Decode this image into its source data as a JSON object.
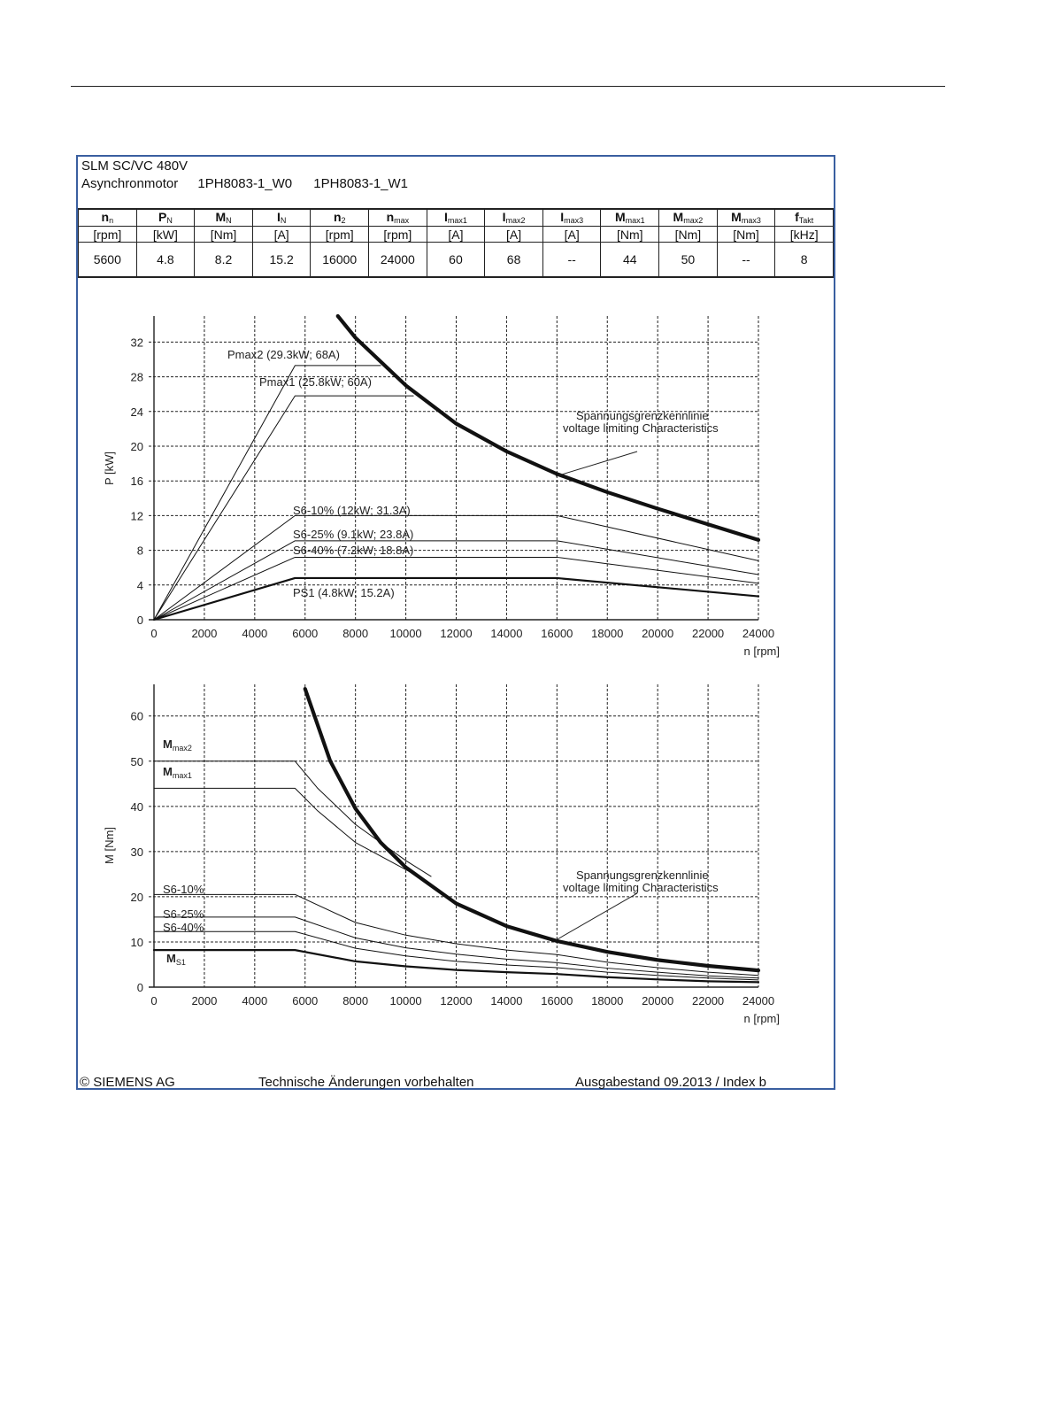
{
  "header": {
    "line1": "SLM SC/VC 480V",
    "motor_type": "Asynchronmotor",
    "model_w0": "1PH8083-1_W0",
    "model_w1": "1PH8083-1_W1"
  },
  "spec_table": {
    "columns": [
      {
        "sym": "n",
        "sub": "n",
        "unit": "[rpm]",
        "value": "5600"
      },
      {
        "sym": "P",
        "sub": "N",
        "unit": "[kW]",
        "value": "4.8"
      },
      {
        "sym": "M",
        "sub": "N",
        "unit": "[Nm]",
        "value": "8.2"
      },
      {
        "sym": "I",
        "sub": "N",
        "unit": "[A]",
        "value": "15.2"
      },
      {
        "sym": "n",
        "sub": "2",
        "unit": "[rpm]",
        "value": "16000"
      },
      {
        "sym": "n",
        "sub": "max",
        "unit": "[rpm]",
        "value": "24000"
      },
      {
        "sym": "I",
        "sub": "max1",
        "unit": "[A]",
        "value": "60"
      },
      {
        "sym": "I",
        "sub": "max2",
        "unit": "[A]",
        "value": "68"
      },
      {
        "sym": "I",
        "sub": "max3",
        "unit": "[A]",
        "value": "--"
      },
      {
        "sym": "M",
        "sub": "max1",
        "unit": "[Nm]",
        "value": "44"
      },
      {
        "sym": "M",
        "sub": "max2",
        "unit": "[Nm]",
        "value": "50"
      },
      {
        "sym": "M",
        "sub": "max3",
        "unit": "[Nm]",
        "value": "--"
      },
      {
        "sym": "f",
        "sub": "Takt",
        "unit": "[kHz]",
        "value": "8"
      }
    ]
  },
  "chart_data": [
    {
      "type": "line",
      "title": "",
      "xlabel": "n [rpm]",
      "ylabel": "P [kW]",
      "xlim": [
        0,
        24000
      ],
      "ylim": [
        0,
        35
      ],
      "xticks": [
        0,
        2000,
        4000,
        6000,
        8000,
        10000,
        12000,
        14000,
        16000,
        18000,
        20000,
        22000,
        24000
      ],
      "yticks": [
        0,
        4,
        8,
        12,
        16,
        20,
        24,
        28,
        32
      ],
      "grid": true,
      "series": [
        {
          "name": "Pmax2 (29.3kW; 68A)",
          "weight": "thin",
          "x": [
            0,
            5600,
            9000
          ],
          "y": [
            0,
            29.3,
            29.3
          ]
        },
        {
          "name": "Pmax1 (25.8kW; 60A)",
          "weight": "thin",
          "x": [
            0,
            5600,
            10300
          ],
          "y": [
            0,
            25.8,
            25.8
          ]
        },
        {
          "name": "S6-10% (12kW; 31.3A)",
          "weight": "thin",
          "x": [
            0,
            5600,
            16000,
            24000
          ],
          "y": [
            0,
            12,
            12,
            6.8
          ]
        },
        {
          "name": "S6-25% (9.1kW; 23.8A)",
          "weight": "thin",
          "x": [
            0,
            5600,
            16000,
            24000
          ],
          "y": [
            0,
            9.1,
            9.1,
            5.2
          ]
        },
        {
          "name": "S6-40% (7.2kW; 18.8A)",
          "weight": "thin",
          "x": [
            0,
            5600,
            16000,
            24000
          ],
          "y": [
            0,
            7.2,
            7.2,
            4.2
          ]
        },
        {
          "name": "PS1 (4.8kW; 15.2A)",
          "weight": "medium",
          "x": [
            0,
            5600,
            16000,
            24000
          ],
          "y": [
            0,
            4.8,
            4.8,
            2.7
          ]
        },
        {
          "name": "Spannungsgrenzkennlinie voltage limiting Characteristics",
          "weight": "bold",
          "x": [
            7300,
            8000,
            10000,
            12000,
            14000,
            16000,
            18000,
            20000,
            22000,
            24000
          ],
          "y": [
            35,
            32.5,
            27.0,
            22.6,
            19.4,
            16.8,
            14.7,
            12.8,
            11.0,
            9.2
          ]
        }
      ],
      "annotations": [
        {
          "text": "Pmax2 (29.3kW; 68A)"
        },
        {
          "text": "Pmax1 (25.8kW; 60A)"
        },
        {
          "text": "S6-10% (12kW; 31.3A)"
        },
        {
          "text": "S6-25% (9.1kW; 23.8A)"
        },
        {
          "text": "S6-40% (7.2kW; 18.8A)"
        },
        {
          "text": "PS1 (4.8kW; 15.2A)"
        },
        {
          "text": "Spannungsgrenzkennlinie"
        },
        {
          "text": "voltage limiting  Characteristics"
        }
      ]
    },
    {
      "type": "line",
      "title": "",
      "xlabel": "n [rpm]",
      "ylabel": "M [Nm]",
      "xlim": [
        0,
        24000
      ],
      "ylim": [
        0,
        67
      ],
      "xticks": [
        0,
        2000,
        4000,
        6000,
        8000,
        10000,
        12000,
        14000,
        16000,
        18000,
        20000,
        22000,
        24000
      ],
      "yticks": [
        0,
        10,
        20,
        30,
        40,
        50,
        60
      ],
      "grid": true,
      "series": [
        {
          "name": "Mmax2",
          "weight": "thin",
          "x": [
            0,
            5600,
            6500,
            8000,
            10000,
            11000
          ],
          "y": [
            50,
            50,
            44,
            36,
            28,
            24.5
          ]
        },
        {
          "name": "Mmax1",
          "weight": "thin",
          "x": [
            0,
            5600,
            6500,
            8000,
            10000,
            10500
          ],
          "y": [
            44,
            44,
            39,
            32,
            26,
            24.5
          ]
        },
        {
          "name": "S6-10%",
          "weight": "thin",
          "x": [
            0,
            5600,
            8000,
            10000,
            12000,
            14000,
            16000,
            18000,
            20000,
            22000,
            24000
          ],
          "y": [
            20.5,
            20.5,
            14.3,
            11.5,
            9.6,
            8.2,
            7.2,
            5.5,
            4.3,
            3.3,
            2.6
          ]
        },
        {
          "name": "S6-25%",
          "weight": "thin",
          "x": [
            0,
            5600,
            8000,
            10000,
            12000,
            14000,
            16000,
            18000,
            20000,
            22000,
            24000
          ],
          "y": [
            15.5,
            15.5,
            10.9,
            8.7,
            7.3,
            6.2,
            5.4,
            4.2,
            3.3,
            2.5,
            2.0
          ]
        },
        {
          "name": "S6-40%",
          "weight": "thin",
          "x": [
            0,
            5600,
            8000,
            10000,
            12000,
            14000,
            16000,
            18000,
            20000,
            22000,
            24000
          ],
          "y": [
            12.3,
            12.3,
            8.6,
            6.9,
            5.7,
            4.9,
            4.3,
            3.3,
            2.6,
            2.0,
            1.6
          ]
        },
        {
          "name": "MS1",
          "weight": "medium",
          "x": [
            0,
            5600,
            8000,
            10000,
            12000,
            14000,
            16000,
            18000,
            20000,
            22000,
            24000
          ],
          "y": [
            8.2,
            8.2,
            5.7,
            4.6,
            3.8,
            3.3,
            2.9,
            2.2,
            1.7,
            1.3,
            1.1
          ]
        },
        {
          "name": "Spannungsgrenzkennlinie voltage limiting Characteristics",
          "weight": "bold",
          "x": [
            6000,
            7000,
            8000,
            9000,
            10000,
            12000,
            14000,
            16000,
            18000,
            20000,
            22000,
            24000
          ],
          "y": [
            66,
            50,
            39.5,
            32,
            26.5,
            18.5,
            13.5,
            10.2,
            7.8,
            6.0,
            4.7,
            3.7
          ]
        }
      ],
      "annotations": [
        {
          "text": "M",
          "sub": "max2"
        },
        {
          "text": "M",
          "sub": "max1"
        },
        {
          "text": "S6-10%"
        },
        {
          "text": "S6-25%"
        },
        {
          "text": "S6-40%"
        },
        {
          "text": "M",
          "sub": "S1"
        },
        {
          "text": "Spannungsgrenzkennlinie"
        },
        {
          "text": "voltage limiting  Characteristics"
        }
      ]
    }
  ],
  "footer": {
    "copyright": "© SIEMENS AG",
    "notice": "Technische Änderungen vorbehalten",
    "edition": "Ausgabestand 09.2013 / Index b"
  }
}
